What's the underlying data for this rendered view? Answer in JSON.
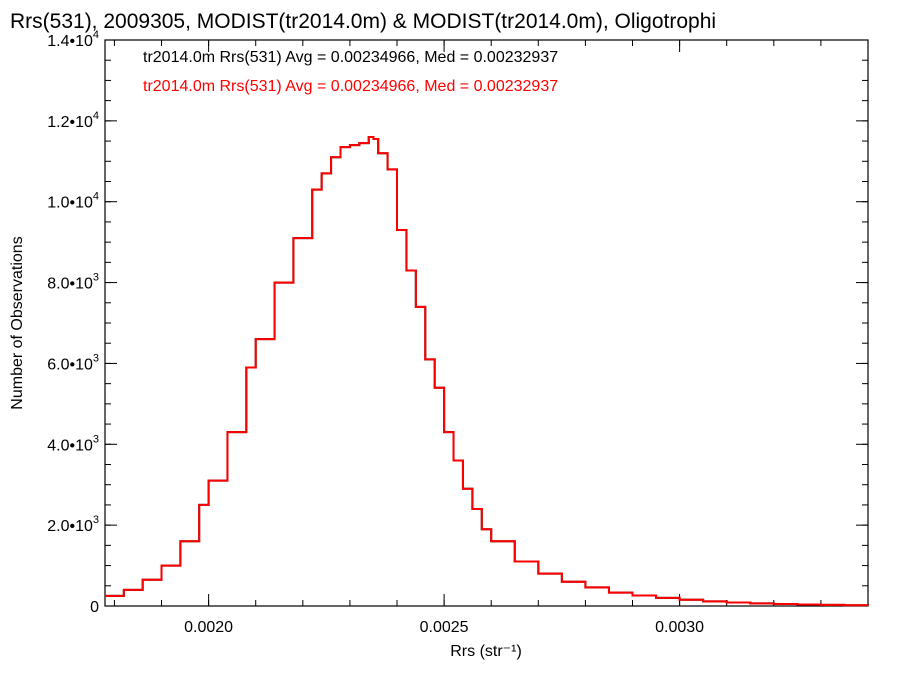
{
  "chart_data": {
    "type": "line",
    "step": true,
    "title": "Rrs(531), 2009305, MODIST(tr2014.0m) & MODIST(tr2014.0m), Oligotrophi",
    "xlabel": "Rrs (str⁻¹)",
    "ylabel": "Number of Observations",
    "xlim": [
      0.00178,
      0.0034
    ],
    "ylim": [
      0,
      14000
    ],
    "grid": false,
    "x_ticks": [
      {
        "value": 0.002,
        "label": "0.0020"
      },
      {
        "value": 0.0025,
        "label": "0.0025"
      },
      {
        "value": 0.003,
        "label": "0.0030"
      }
    ],
    "y_ticks": [
      {
        "value": 0,
        "mantissa": "0",
        "exponent": ""
      },
      {
        "value": 2000,
        "mantissa": "2.0•10",
        "exponent": "3"
      },
      {
        "value": 4000,
        "mantissa": "4.0•10",
        "exponent": "3"
      },
      {
        "value": 6000,
        "mantissa": "6.0•10",
        "exponent": "3"
      },
      {
        "value": 8000,
        "mantissa": "8.0•10",
        "exponent": "3"
      },
      {
        "value": 10000,
        "mantissa": "1.0•10",
        "exponent": "4"
      },
      {
        "value": 12000,
        "mantissa": "1.2•10",
        "exponent": "4"
      },
      {
        "value": 14000,
        "mantissa": "1.4•10",
        "exponent": "4"
      }
    ],
    "annotations": [
      {
        "text": "tr2014.0m Rrs(531) Avg = 0.00234966, Med = 0.00232937",
        "color": "#000000"
      },
      {
        "text": "tr2014.0m Rrs(531) Avg = 0.00234966, Med = 0.00232937",
        "color": "#ff0000"
      }
    ],
    "series": [
      {
        "color": "#000000",
        "x": [
          0.00178,
          0.00182,
          0.00186,
          0.0019,
          0.00194,
          0.00198,
          0.002,
          0.00204,
          0.00208,
          0.0021,
          0.00214,
          0.00218,
          0.00222,
          0.00224,
          0.00226,
          0.00228,
          0.0023,
          0.00232,
          0.00234,
          0.00235,
          0.00236,
          0.00238,
          0.0024,
          0.00242,
          0.00244,
          0.00246,
          0.00248,
          0.0025,
          0.00252,
          0.00254,
          0.00256,
          0.00258,
          0.0026,
          0.00265,
          0.0027,
          0.00275,
          0.0028,
          0.00285,
          0.0029,
          0.00295,
          0.003,
          0.00305,
          0.0031,
          0.00315,
          0.0032,
          0.00325,
          0.0033,
          0.00335,
          0.0034
        ],
        "values": [
          250,
          400,
          650,
          1000,
          1600,
          2500,
          3100,
          4300,
          5900,
          6600,
          8000,
          9100,
          10300,
          10700,
          11100,
          11350,
          11400,
          11450,
          11600,
          11550,
          11200,
          10800,
          9300,
          8300,
          7400,
          6100,
          5400,
          4300,
          3600,
          2900,
          2400,
          1900,
          1600,
          1100,
          800,
          600,
          460,
          330,
          260,
          200,
          155,
          115,
          85,
          65,
          50,
          38,
          28,
          20,
          12
        ]
      },
      {
        "color": "#ff0000",
        "x": [
          0.00178,
          0.00182,
          0.00186,
          0.0019,
          0.00194,
          0.00198,
          0.002,
          0.00204,
          0.00208,
          0.0021,
          0.00214,
          0.00218,
          0.00222,
          0.00224,
          0.00226,
          0.00228,
          0.0023,
          0.00232,
          0.00234,
          0.00235,
          0.00236,
          0.00238,
          0.0024,
          0.00242,
          0.00244,
          0.00246,
          0.00248,
          0.0025,
          0.00252,
          0.00254,
          0.00256,
          0.00258,
          0.0026,
          0.00265,
          0.0027,
          0.00275,
          0.0028,
          0.00285,
          0.0029,
          0.00295,
          0.003,
          0.00305,
          0.0031,
          0.00315,
          0.0032,
          0.00325,
          0.0033,
          0.00335,
          0.0034
        ],
        "values": [
          250,
          400,
          650,
          1000,
          1600,
          2500,
          3100,
          4300,
          5900,
          6600,
          8000,
          9100,
          10300,
          10700,
          11100,
          11350,
          11400,
          11450,
          11600,
          11550,
          11200,
          10800,
          9300,
          8300,
          7400,
          6100,
          5400,
          4300,
          3600,
          2900,
          2400,
          1900,
          1600,
          1100,
          800,
          600,
          460,
          330,
          260,
          200,
          155,
          115,
          85,
          65,
          50,
          38,
          28,
          20,
          12
        ]
      }
    ]
  }
}
